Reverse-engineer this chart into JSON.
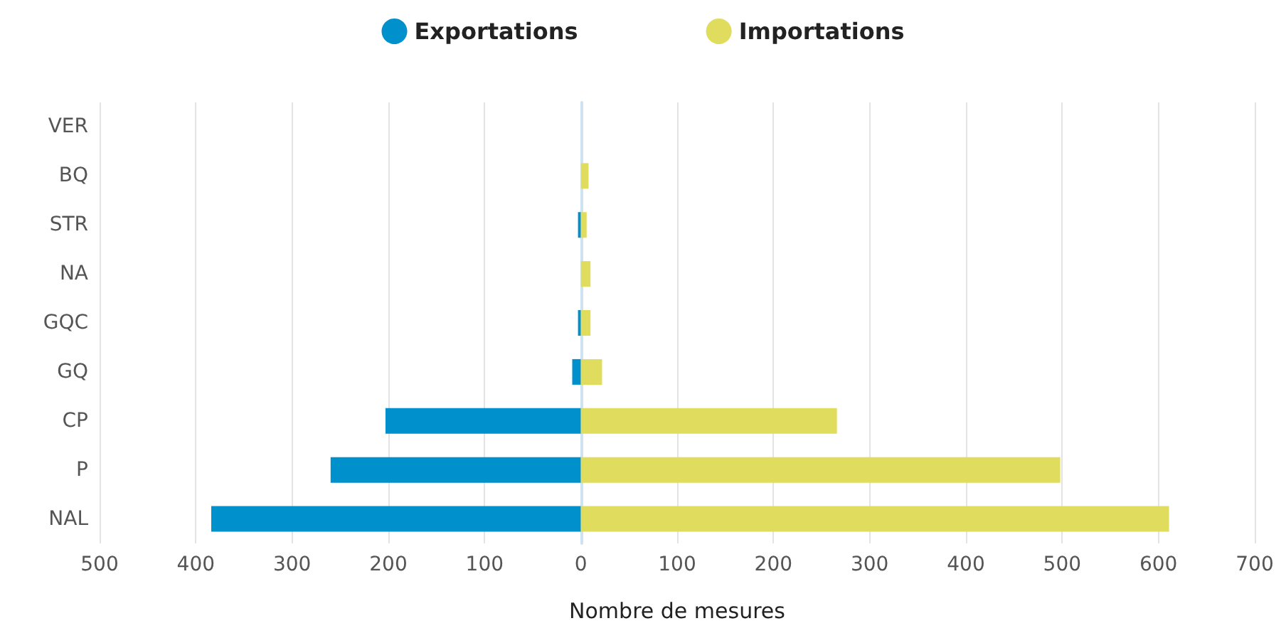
{
  "chart_data": {
    "type": "bar",
    "orientation": "horizontal",
    "stacked": true,
    "xlabel": "Nombre de mesures",
    "categories": [
      "VER",
      "BQ",
      "STR",
      "NA",
      "GQC",
      "GQ",
      "CP",
      "P",
      "NAL"
    ],
    "series": [
      {
        "name": "Exportations",
        "color": "#0090cc",
        "values": [
          0,
          0,
          -3,
          0,
          -3,
          -9,
          -203,
          -260,
          -384
        ]
      },
      {
        "name": "Importations",
        "color": "#e0dd5e",
        "values": [
          0,
          8,
          6,
          10,
          10,
          22,
          266,
          498,
          611
        ]
      }
    ],
    "xlim": [
      -500,
      700
    ],
    "xticks": [
      {
        "value": -500,
        "label": "500"
      },
      {
        "value": -400,
        "label": "400"
      },
      {
        "value": -300,
        "label": "300"
      },
      {
        "value": -200,
        "label": "200"
      },
      {
        "value": -100,
        "label": "100"
      },
      0,
      100,
      200,
      300,
      400,
      500,
      600,
      700
    ],
    "grid": "x",
    "legend": "top"
  }
}
